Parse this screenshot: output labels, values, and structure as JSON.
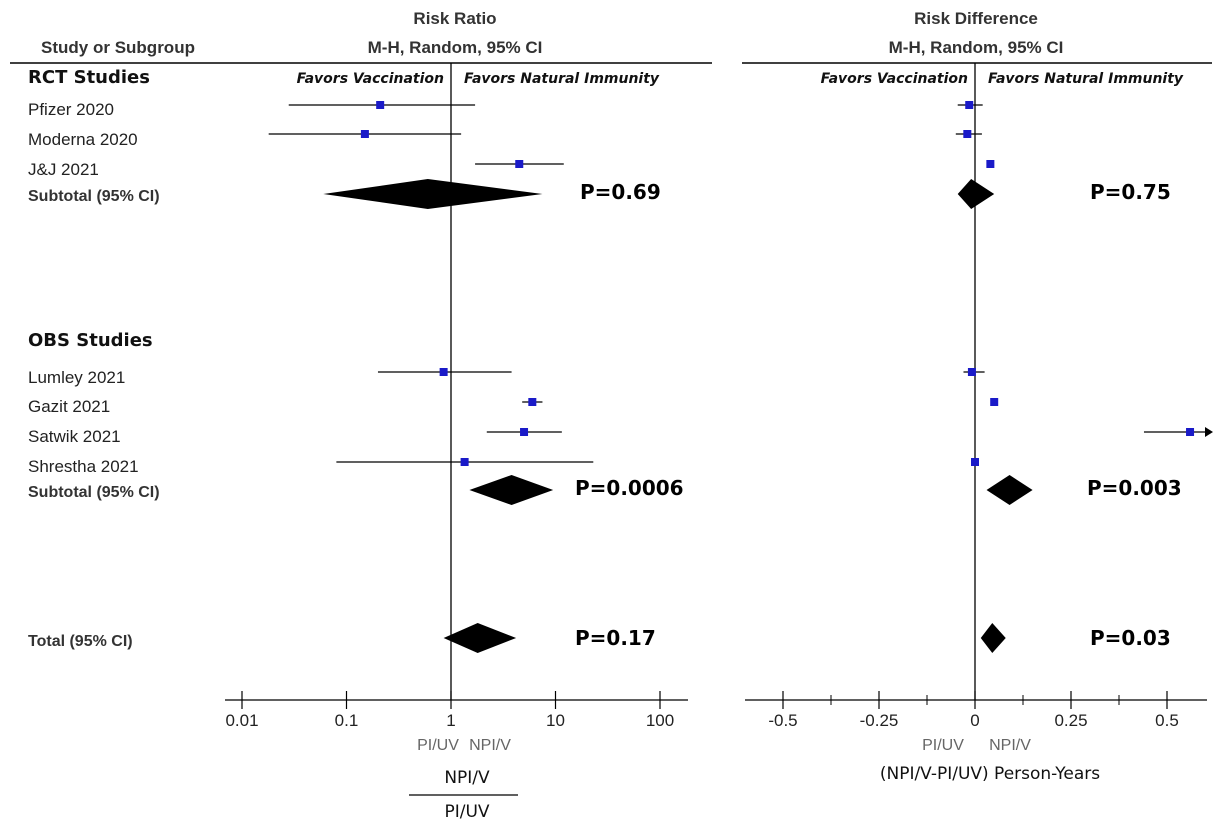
{
  "chart_data": [
    {
      "type": "forest",
      "title": "Risk Ratio",
      "subtitle": "M-H, Random, 95% CI",
      "scale": "log",
      "xlim": [
        0.01,
        100
      ],
      "ticks": [
        "0.01",
        "0.1",
        "1",
        "10",
        "100"
      ],
      "favors_left": "Favors  Vaccination",
      "favors_right": "Favors  Natural Immunity",
      "direction_left": "PI/UV",
      "direction_right": "NPI/V",
      "xlabel_numerator": "NPI/V",
      "xlabel_denominator": "PI/UV",
      "groups": [
        {
          "name": "RCT Studies",
          "studies": [
            {
              "study": "Pfizer 2020",
              "estimate": 0.21,
              "low": 0.028,
              "high": 1.7
            },
            {
              "study": "Moderna 2020",
              "estimate": 0.15,
              "low": 0.018,
              "high": 1.25
            },
            {
              "study": "J&J 2021",
              "estimate": 4.5,
              "low": 1.7,
              "high": 12
            }
          ],
          "subtotal": {
            "label": "Subtotal (95% CI)",
            "estimate": 0.6,
            "low": 0.06,
            "high": 7.5,
            "p": "P=0.69"
          }
        },
        {
          "name": "OBS Studies",
          "studies": [
            {
              "study": "Lumley 2021",
              "estimate": 0.85,
              "low": 0.2,
              "high": 3.8
            },
            {
              "study": "Gazit 2021",
              "estimate": 6.0,
              "low": 4.8,
              "high": 7.5
            },
            {
              "study": "Satwik 2021",
              "estimate": 5.0,
              "low": 2.2,
              "high": 11.5
            },
            {
              "study": "Shrestha 2021",
              "estimate": 1.35,
              "low": 0.08,
              "high": 23
            }
          ],
          "subtotal": {
            "label": "Subtotal (95% CI)",
            "estimate": 3.8,
            "low": 1.5,
            "high": 9.5,
            "p": "P=0.0006"
          }
        }
      ],
      "total": {
        "label": "Total (95% CI)",
        "estimate": 1.8,
        "low": 0.85,
        "high": 4.2,
        "p": "P=0.17"
      }
    },
    {
      "type": "forest",
      "title": "Risk Difference",
      "subtitle": "M-H, Random, 95% CI",
      "scale": "linear",
      "xlim": [
        -0.6,
        0.6
      ],
      "ticks": [
        "-0.5",
        "-0.25",
        "0",
        "0.25",
        "0.5"
      ],
      "favors_left": "Favors  Vaccination",
      "favors_right": "Favors  Natural Immunity",
      "direction_left": "PI/UV",
      "direction_right": "NPI/V",
      "xlabel": "(NPI/V-PI/UV) Person-Years",
      "groups": [
        {
          "name": "RCT Studies",
          "studies": [
            {
              "study": "Pfizer 2020",
              "estimate": -0.015,
              "low": -0.045,
              "high": 0.02
            },
            {
              "study": "Moderna 2020",
              "estimate": -0.02,
              "low": -0.05,
              "high": 0.018
            },
            {
              "study": "J&J 2021",
              "estimate": 0.04,
              "low": 0.035,
              "high": 0.045
            }
          ],
          "subtotal": {
            "label": "Subtotal (95% CI)",
            "estimate": -0.01,
            "low": -0.045,
            "high": 0.05,
            "p": "P=0.75"
          }
        },
        {
          "name": "OBS Studies",
          "studies": [
            {
              "study": "Lumley 2021",
              "estimate": -0.008,
              "low": -0.03,
              "high": 0.025
            },
            {
              "study": "Gazit 2021",
              "estimate": 0.05,
              "low": 0.048,
              "high": 0.052
            },
            {
              "study": "Satwik 2021",
              "estimate": 0.56,
              "low": 0.44,
              "high": 0.62
            },
            {
              "study": "Shrestha 2021",
              "estimate": 0.0,
              "low": -0.004,
              "high": 0.004
            }
          ],
          "subtotal": {
            "label": "Subtotal (95% CI)",
            "estimate": 0.09,
            "low": 0.03,
            "high": 0.15,
            "p": "P=0.003"
          }
        }
      ],
      "total": {
        "label": "Total (95% CI)",
        "estimate": 0.045,
        "low": 0.015,
        "high": 0.08,
        "p": "P=0.03"
      }
    }
  ],
  "table": {
    "column_header": "Study or Subgroup"
  },
  "colors": {
    "marker": "#1a1ac8",
    "diamond": "#000000",
    "line": "#000000"
  }
}
